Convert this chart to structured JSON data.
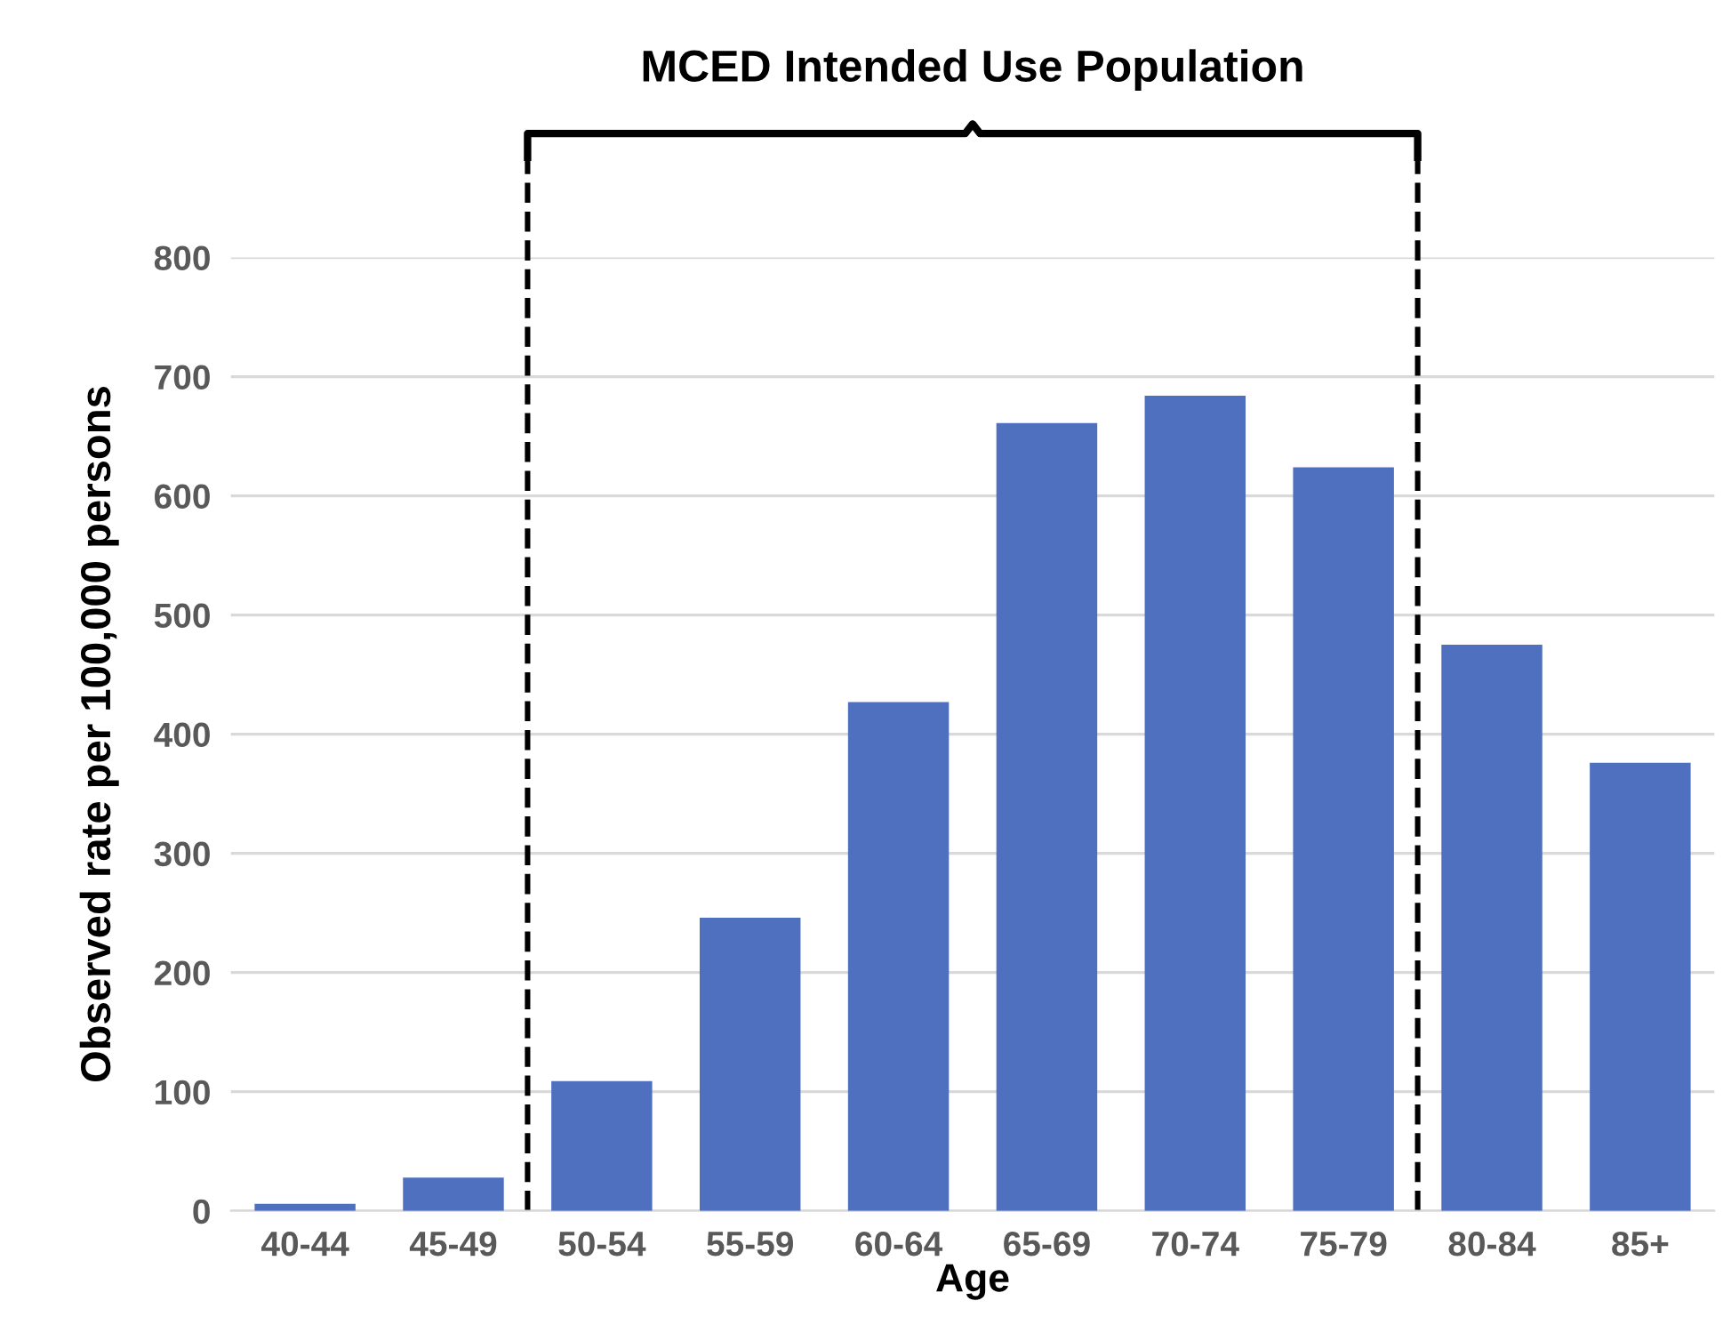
{
  "chart_data": {
    "type": "bar",
    "xlabel": "Age",
    "ylabel": "Observed rate per 100,000 persons",
    "categories": [
      "40-44",
      "45-49",
      "50-54",
      "55-59",
      "60-64",
      "65-69",
      "70-74",
      "75-79",
      "80-84",
      "85+"
    ],
    "values": [
      6,
      28,
      109,
      246,
      427,
      661,
      684,
      624,
      475,
      376
    ],
    "color": "#4f70be",
    "ylim": [
      0,
      800
    ],
    "yticks": [
      0,
      100,
      200,
      300,
      400,
      500,
      600,
      700,
      800
    ],
    "grid": "y",
    "annotations": [
      "MCED Intended Use Population"
    ]
  }
}
